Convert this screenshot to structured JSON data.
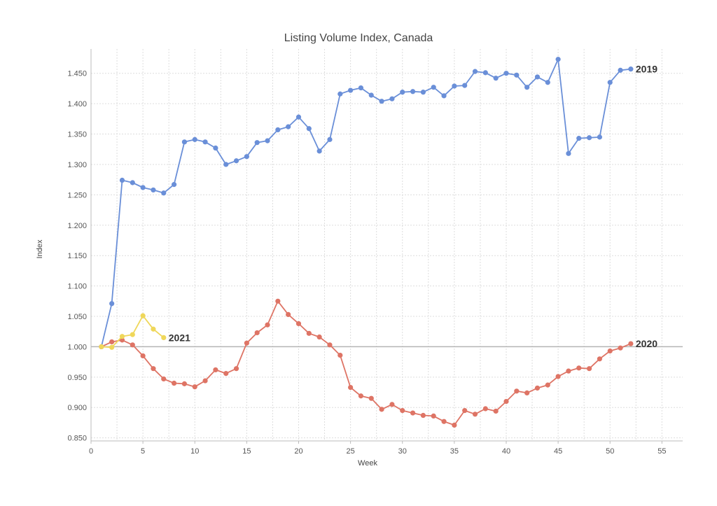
{
  "chart_data": {
    "type": "line",
    "title": "Listing Volume Index, Canada",
    "xlabel": "Week",
    "ylabel": "Index",
    "xlim": [
      0,
      57
    ],
    "ylim": [
      0.845,
      1.49
    ],
    "x_ticks": [
      0,
      5,
      10,
      15,
      20,
      25,
      30,
      35,
      40,
      45,
      50,
      55
    ],
    "y_ticks": [
      0.85,
      0.9,
      0.95,
      1.0,
      1.05,
      1.1,
      1.15,
      1.2,
      1.25,
      1.3,
      1.35,
      1.4,
      1.45
    ],
    "y_tick_labels": [
      "0.850",
      "0.900",
      "0.950",
      "1.000",
      "1.050",
      "1.100",
      "1.150",
      "1.200",
      "1.250",
      "1.300",
      "1.350",
      "1.400",
      "1.450"
    ],
    "reference_line": 1.0,
    "grid": true,
    "series": [
      {
        "name": "2019",
        "color": "#6a8fd8",
        "x": [
          1,
          2,
          3,
          4,
          5,
          6,
          7,
          8,
          9,
          10,
          11,
          12,
          13,
          14,
          15,
          16,
          17,
          18,
          19,
          20,
          21,
          22,
          23,
          24,
          25,
          26,
          27,
          28,
          29,
          30,
          31,
          32,
          33,
          34,
          35,
          36,
          37,
          38,
          39,
          40,
          41,
          42,
          43,
          44,
          45,
          46,
          47,
          48,
          49,
          50,
          51,
          52
        ],
        "values": [
          1.0,
          1.071,
          1.274,
          1.27,
          1.262,
          1.258,
          1.253,
          1.267,
          1.337,
          1.341,
          1.337,
          1.327,
          1.3,
          1.306,
          1.313,
          1.336,
          1.339,
          1.357,
          1.362,
          1.378,
          1.359,
          1.322,
          1.341,
          1.416,
          1.422,
          1.426,
          1.414,
          1.404,
          1.408,
          1.419,
          1.42,
          1.419,
          1.427,
          1.413,
          1.429,
          1.43,
          1.453,
          1.451,
          1.442,
          1.45,
          1.447,
          1.427,
          1.444,
          1.435,
          1.473,
          1.318,
          1.343,
          1.344,
          1.345,
          1.435,
          1.455,
          1.457
        ]
      },
      {
        "name": "2020",
        "color": "#de7465",
        "x": [
          1,
          2,
          3,
          4,
          5,
          6,
          7,
          8,
          9,
          10,
          11,
          12,
          13,
          14,
          15,
          16,
          17,
          18,
          19,
          20,
          21,
          22,
          23,
          24,
          25,
          26,
          27,
          28,
          29,
          30,
          31,
          32,
          33,
          34,
          35,
          36,
          37,
          38,
          39,
          40,
          41,
          42,
          43,
          44,
          45,
          46,
          47,
          48,
          49,
          50,
          51,
          52
        ],
        "values": [
          1.0,
          1.008,
          1.011,
          1.003,
          0.985,
          0.964,
          0.947,
          0.94,
          0.939,
          0.934,
          0.944,
          0.962,
          0.956,
          0.964,
          1.006,
          1.023,
          1.036,
          1.075,
          1.053,
          1.038,
          1.022,
          1.016,
          1.003,
          0.986,
          0.933,
          0.919,
          0.915,
          0.897,
          0.905,
          0.895,
          0.891,
          0.887,
          0.886,
          0.877,
          0.871,
          0.895,
          0.889,
          0.898,
          0.894,
          0.91,
          0.927,
          0.924,
          0.932,
          0.937,
          0.951,
          0.96,
          0.965,
          0.964,
          0.98,
          0.993,
          0.998,
          1.005
        ]
      },
      {
        "name": "2021",
        "color": "#efd75a",
        "x": [
          1,
          2,
          3,
          4,
          5,
          6,
          7
        ],
        "values": [
          1.0,
          0.999,
          1.017,
          1.02,
          1.051,
          1.029,
          1.015
        ]
      }
    ]
  }
}
